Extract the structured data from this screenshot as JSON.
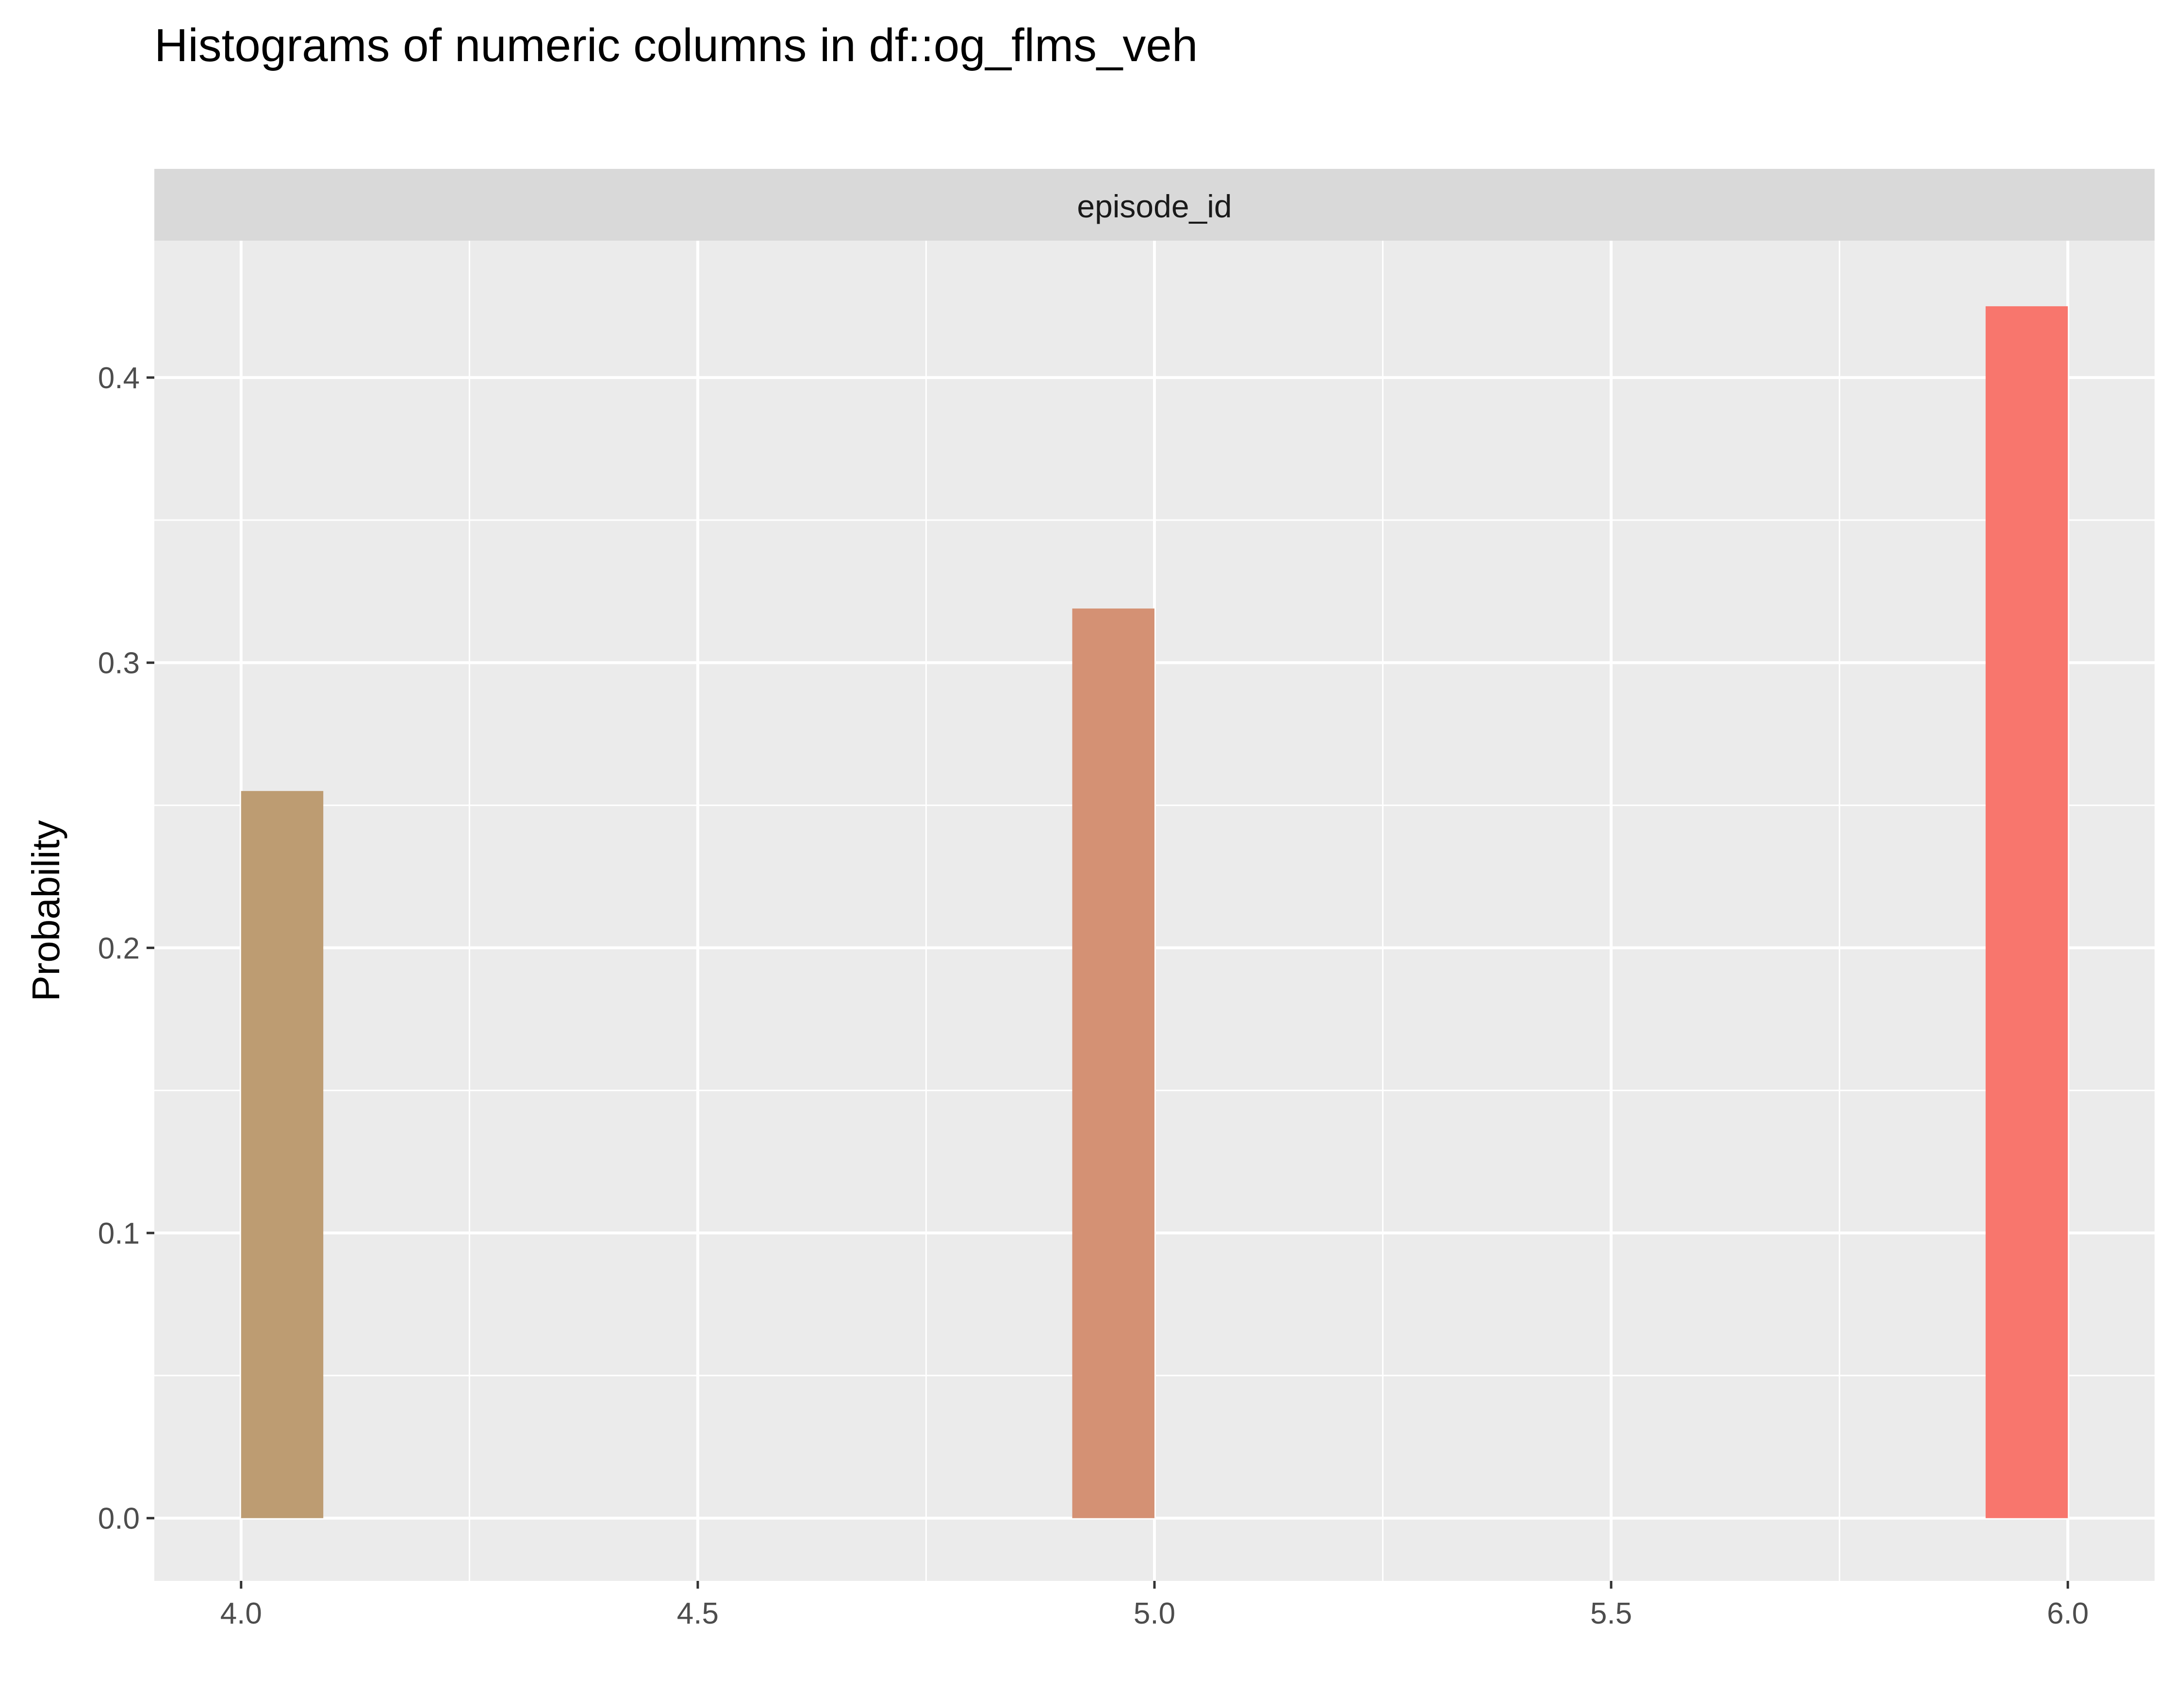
{
  "title": "Histograms of numeric columns in df::og_flms_veh",
  "chart_data": {
    "type": "bar",
    "title": "Histograms of numeric columns in df::og_flms_veh",
    "facet": "episode_id",
    "xlabel": "",
    "ylabel": "Probability",
    "xlim": [
      3.905,
      6.095
    ],
    "ylim": [
      -0.022,
      0.448
    ],
    "x_ticks": [
      4.0,
      4.5,
      5.0,
      5.5,
      6.0
    ],
    "x_tick_labels": [
      "4.0",
      "4.5",
      "5.0",
      "5.5",
      "6.0"
    ],
    "y_ticks": [
      0.0,
      0.1,
      0.2,
      0.3,
      0.4
    ],
    "y_tick_labels": [
      "0.0",
      "0.1",
      "0.2",
      "0.3",
      "0.4"
    ],
    "grid": true,
    "bins": [
      {
        "x_start": 4.0,
        "x_end": 4.09,
        "value": 0.255,
        "color": "#bd9c72"
      },
      {
        "x_start": 4.91,
        "x_end": 5.0,
        "value": 0.319,
        "color": "#d49174"
      },
      {
        "x_start": 5.91,
        "x_end": 6.0,
        "value": 0.425,
        "color": "#f8766d"
      }
    ]
  }
}
